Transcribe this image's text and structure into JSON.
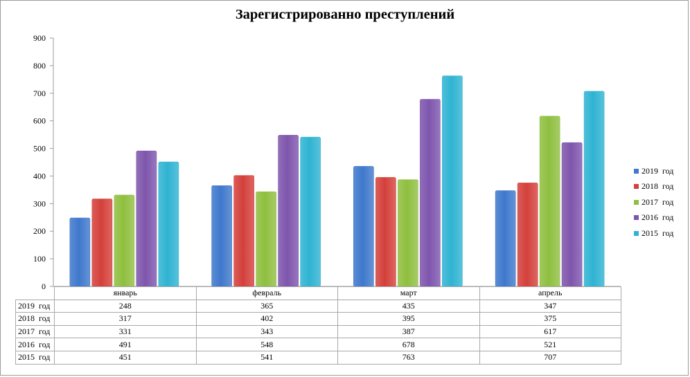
{
  "chart_data": {
    "type": "bar",
    "title": "Зарегистрированно преступлений",
    "categories": [
      "январь",
      "февраль",
      "март",
      "апрель"
    ],
    "series": [
      {
        "name": "2019  год",
        "color": "#3f78cc",
        "values": [
          248,
          365,
          435,
          347
        ]
      },
      {
        "name": "2018  год",
        "color": "#d4403b",
        "values": [
          317,
          402,
          395,
          375
        ]
      },
      {
        "name": "2017  год",
        "color": "#8fbf3f",
        "values": [
          331,
          343,
          387,
          617
        ]
      },
      {
        "name": "2016  год",
        "color": "#7e55ad",
        "values": [
          491,
          548,
          678,
          521
        ]
      },
      {
        "name": "2015  год",
        "color": "#2fb3d2",
        "values": [
          451,
          541,
          763,
          707
        ]
      }
    ],
    "y_ticks": [
      "0",
      "100",
      "200",
      "300",
      "400",
      "500",
      "600",
      "700",
      "800",
      "900"
    ],
    "ylim": [
      0,
      900
    ],
    "legend": "right",
    "grid": false,
    "data_table": true
  }
}
